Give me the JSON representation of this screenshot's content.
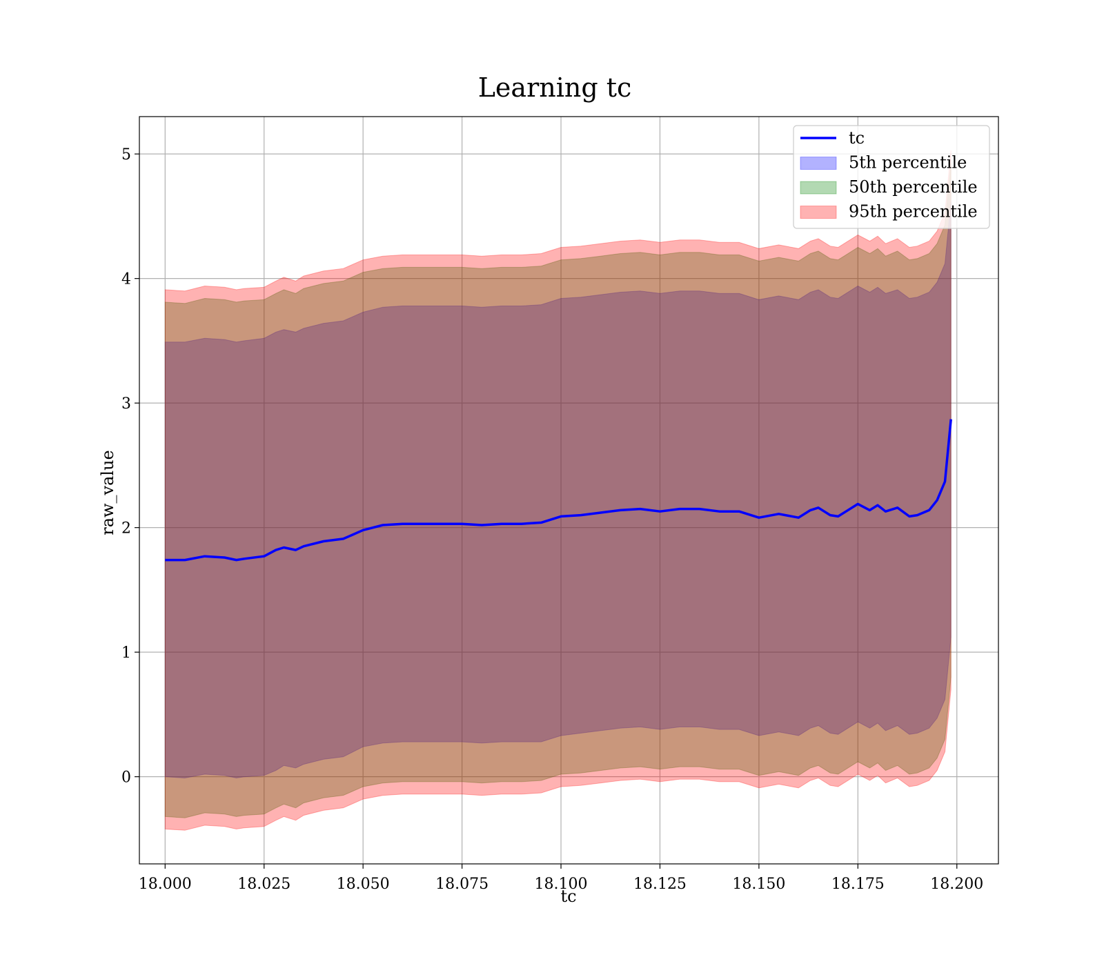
{
  "chart_data": {
    "type": "line",
    "title": "Learning tc",
    "xlabel": "tc",
    "ylabel": "raw_value",
    "xlim": [
      17.9935,
      18.2105
    ],
    "ylim": [
      -0.7,
      5.3
    ],
    "xticks": [
      18.0,
      18.025,
      18.05,
      18.075,
      18.1,
      18.125,
      18.15,
      18.175,
      18.2
    ],
    "xtick_labels": [
      "18.000",
      "18.025",
      "18.050",
      "18.075",
      "18.100",
      "18.125",
      "18.150",
      "18.175",
      "18.200"
    ],
    "yticks": [
      0,
      1,
      2,
      3,
      4,
      5
    ],
    "ytick_labels": [
      "0",
      "1",
      "2",
      "3",
      "4",
      "5"
    ],
    "grid": true,
    "legend_position": "top-right",
    "colors": {
      "line": "#0000ff",
      "band_5": "#0000ff",
      "band_50": "#008000",
      "band_95": "#ff0000"
    },
    "x": [
      18.0,
      18.005,
      18.01,
      18.015,
      18.018,
      18.02,
      18.025,
      18.028,
      18.03,
      18.033,
      18.035,
      18.04,
      18.045,
      18.05,
      18.055,
      18.06,
      18.065,
      18.07,
      18.075,
      18.08,
      18.085,
      18.09,
      18.095,
      18.1,
      18.105,
      18.11,
      18.115,
      18.12,
      18.125,
      18.13,
      18.135,
      18.14,
      18.145,
      18.15,
      18.155,
      18.16,
      18.163,
      18.165,
      18.168,
      18.17,
      18.172,
      18.175,
      18.178,
      18.18,
      18.182,
      18.185,
      18.188,
      18.19,
      18.193,
      18.195,
      18.197,
      18.1985
    ],
    "series": [
      {
        "name": "tc",
        "values": [
          1.74,
          1.74,
          1.77,
          1.76,
          1.74,
          1.75,
          1.77,
          1.82,
          1.84,
          1.82,
          1.85,
          1.89,
          1.91,
          1.98,
          2.02,
          2.03,
          2.03,
          2.03,
          2.03,
          2.02,
          2.03,
          2.03,
          2.04,
          2.09,
          2.1,
          2.12,
          2.14,
          2.15,
          2.13,
          2.15,
          2.15,
          2.13,
          2.13,
          2.08,
          2.11,
          2.08,
          2.14,
          2.16,
          2.1,
          2.09,
          2.13,
          2.19,
          2.14,
          2.18,
          2.13,
          2.16,
          2.09,
          2.1,
          2.14,
          2.22,
          2.37,
          2.87
        ]
      }
    ],
    "bands": [
      {
        "name": "5th percentile",
        "lower": [
          0.0,
          -0.01,
          0.02,
          0.01,
          -0.01,
          0.0,
          0.01,
          0.05,
          0.09,
          0.07,
          0.1,
          0.14,
          0.16,
          0.24,
          0.27,
          0.28,
          0.28,
          0.28,
          0.28,
          0.27,
          0.28,
          0.28,
          0.28,
          0.33,
          0.35,
          0.37,
          0.39,
          0.4,
          0.38,
          0.4,
          0.4,
          0.38,
          0.38,
          0.33,
          0.36,
          0.33,
          0.39,
          0.41,
          0.35,
          0.34,
          0.38,
          0.44,
          0.39,
          0.43,
          0.37,
          0.41,
          0.34,
          0.35,
          0.39,
          0.47,
          0.62,
          1.12
        ],
        "upper": [
          3.49,
          3.49,
          3.52,
          3.51,
          3.49,
          3.5,
          3.52,
          3.57,
          3.59,
          3.57,
          3.6,
          3.64,
          3.66,
          3.73,
          3.77,
          3.78,
          3.78,
          3.78,
          3.78,
          3.77,
          3.78,
          3.78,
          3.79,
          3.84,
          3.85,
          3.87,
          3.89,
          3.9,
          3.88,
          3.9,
          3.9,
          3.88,
          3.88,
          3.83,
          3.86,
          3.83,
          3.89,
          3.91,
          3.85,
          3.84,
          3.88,
          3.94,
          3.89,
          3.93,
          3.88,
          3.91,
          3.84,
          3.85,
          3.89,
          3.97,
          4.12,
          4.62
        ]
      },
      {
        "name": "50th percentile",
        "lower": [
          -0.32,
          -0.33,
          -0.29,
          -0.3,
          -0.32,
          -0.31,
          -0.3,
          -0.25,
          -0.22,
          -0.25,
          -0.21,
          -0.17,
          -0.15,
          -0.08,
          -0.05,
          -0.04,
          -0.04,
          -0.04,
          -0.04,
          -0.05,
          -0.04,
          -0.04,
          -0.03,
          0.02,
          0.03,
          0.05,
          0.07,
          0.08,
          0.06,
          0.08,
          0.08,
          0.06,
          0.06,
          0.01,
          0.04,
          0.01,
          0.07,
          0.09,
          0.03,
          0.02,
          0.06,
          0.12,
          0.07,
          0.11,
          0.05,
          0.09,
          0.02,
          0.03,
          0.07,
          0.15,
          0.3,
          0.8
        ],
        "upper": [
          3.81,
          3.8,
          3.84,
          3.83,
          3.81,
          3.82,
          3.83,
          3.88,
          3.91,
          3.88,
          3.92,
          3.96,
          3.98,
          4.05,
          4.08,
          4.09,
          4.09,
          4.09,
          4.09,
          4.08,
          4.09,
          4.09,
          4.1,
          4.15,
          4.16,
          4.18,
          4.2,
          4.21,
          4.19,
          4.21,
          4.21,
          4.19,
          4.19,
          4.14,
          4.17,
          4.14,
          4.2,
          4.22,
          4.16,
          4.15,
          4.19,
          4.25,
          4.2,
          4.24,
          4.18,
          4.22,
          4.15,
          4.16,
          4.2,
          4.28,
          4.43,
          4.93
        ]
      },
      {
        "name": "95th percentile",
        "lower": [
          -0.42,
          -0.43,
          -0.39,
          -0.4,
          -0.42,
          -0.41,
          -0.4,
          -0.35,
          -0.32,
          -0.35,
          -0.31,
          -0.27,
          -0.25,
          -0.18,
          -0.15,
          -0.14,
          -0.14,
          -0.14,
          -0.14,
          -0.15,
          -0.14,
          -0.14,
          -0.13,
          -0.08,
          -0.07,
          -0.05,
          -0.03,
          -0.02,
          -0.04,
          -0.02,
          -0.02,
          -0.04,
          -0.04,
          -0.09,
          -0.06,
          -0.09,
          -0.03,
          -0.01,
          -0.07,
          -0.08,
          -0.04,
          0.02,
          -0.03,
          0.01,
          -0.05,
          -0.01,
          -0.08,
          -0.07,
          -0.03,
          0.05,
          0.2,
          0.7
        ],
        "upper": [
          3.91,
          3.9,
          3.94,
          3.93,
          3.91,
          3.92,
          3.93,
          3.98,
          4.01,
          3.98,
          4.02,
          4.06,
          4.08,
          4.15,
          4.18,
          4.19,
          4.19,
          4.19,
          4.19,
          4.18,
          4.19,
          4.19,
          4.2,
          4.25,
          4.26,
          4.28,
          4.3,
          4.31,
          4.29,
          4.31,
          4.31,
          4.29,
          4.29,
          4.24,
          4.27,
          4.24,
          4.3,
          4.32,
          4.26,
          4.25,
          4.29,
          4.35,
          4.3,
          4.34,
          4.28,
          4.32,
          4.25,
          4.26,
          4.3,
          4.38,
          4.53,
          5.03
        ]
      }
    ],
    "legend": [
      {
        "label": "tc",
        "kind": "line"
      },
      {
        "label": "5th percentile",
        "kind": "patch"
      },
      {
        "label": "50th percentile",
        "kind": "patch"
      },
      {
        "label": "95th percentile",
        "kind": "patch"
      }
    ]
  }
}
